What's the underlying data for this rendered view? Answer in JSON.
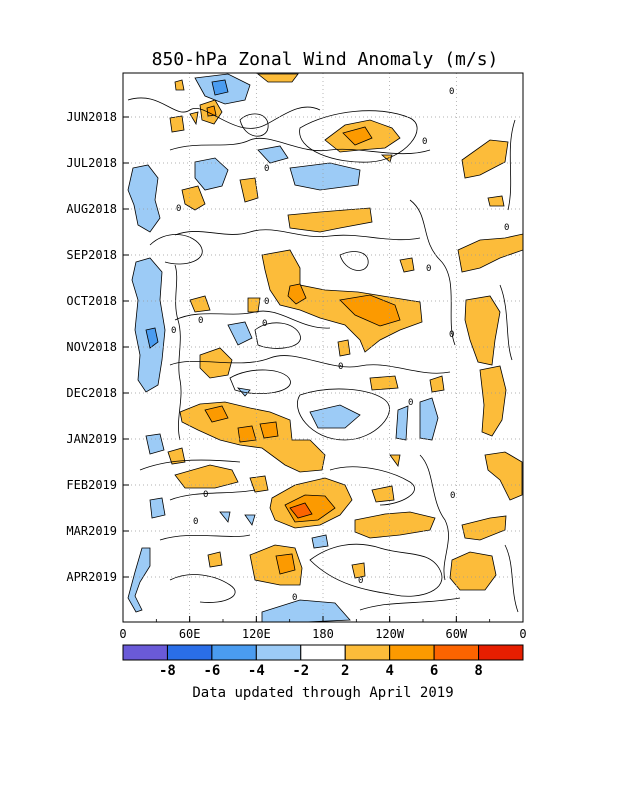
{
  "chart_data": {
    "type": "heatmap",
    "title": "850-hPa Zonal Wind Anomaly (m/s)",
    "footer": "Data updated through April 2019",
    "x_axis": {
      "ticks": [
        "0",
        "60E",
        "120E",
        "180",
        "120W",
        "60W",
        "0"
      ],
      "range_deg_east": [
        0,
        360
      ]
    },
    "y_axis": {
      "ticks": [
        "JUN2018",
        "JUL2018",
        "AUG2018",
        "SEP2018",
        "OCT2018",
        "NOV2018",
        "DEC2018",
        "JAN2019",
        "FEB2019",
        "MAR2019",
        "APR2019"
      ],
      "direction": "time increases downward"
    },
    "grid": "dotted",
    "contour_zero_label": "0",
    "colorbar": {
      "labels": [
        "-8",
        "-6",
        "-4",
        "-2",
        "2",
        "4",
        "6",
        "8"
      ],
      "bins": [
        {
          "color": "#6a5ad8"
        },
        {
          "color": "#2a6ee8"
        },
        {
          "color": "#4a9cf0"
        },
        {
          "color": "#9ccbf6"
        },
        {
          "color": "#ffffff"
        },
        {
          "color": "#fcbc3a"
        },
        {
          "color": "#fc9a00"
        },
        {
          "color": "#fc6400"
        },
        {
          "color": "#e61e00"
        }
      ]
    },
    "anomaly_patches": [
      {
        "lon": 85,
        "date": "2018-05-10",
        "value": -3
      },
      {
        "lon": 80,
        "date": "2018-06-08",
        "value": 3
      },
      {
        "lon": 48,
        "date": "2018-06-12",
        "value": 2
      },
      {
        "lon": 222,
        "date": "2018-06-25",
        "value": 4
      },
      {
        "lon": 330,
        "date": "2018-07-10",
        "value": 3
      },
      {
        "lon": 180,
        "date": "2018-07-30",
        "value": -3
      },
      {
        "lon": 90,
        "date": "2018-07-25",
        "value": -2
      },
      {
        "lon": 25,
        "date": "2018-08-01",
        "value": -2
      },
      {
        "lon": 63,
        "date": "2018-08-05",
        "value": 2
      },
      {
        "lon": 212,
        "date": "2018-08-25",
        "value": 3
      },
      {
        "lon": 330,
        "date": "2018-09-12",
        "value": 3
      },
      {
        "lon": 20,
        "date": "2018-10-15",
        "value": -3
      },
      {
        "lon": 155,
        "date": "2018-10-02",
        "value": 4
      },
      {
        "lon": 225,
        "date": "2018-10-10",
        "value": 5
      },
      {
        "lon": 318,
        "date": "2018-10-30",
        "value": 3
      },
      {
        "lon": 80,
        "date": "2018-11-20",
        "value": 3
      },
      {
        "lon": 190,
        "date": "2018-12-05",
        "value": -2
      },
      {
        "lon": 105,
        "date": "2018-12-28",
        "value": 4
      },
      {
        "lon": 150,
        "date": "2019-01-08",
        "value": 4
      },
      {
        "lon": 178,
        "date": "2019-01-25",
        "value": 3
      },
      {
        "lon": 220,
        "date": "2019-01-15",
        "value": -2
      },
      {
        "lon": 265,
        "date": "2019-01-20",
        "value": -2
      },
      {
        "lon": 95,
        "date": "2019-02-06",
        "value": 3
      },
      {
        "lon": 168,
        "date": "2019-02-26",
        "value": 6
      },
      {
        "lon": 235,
        "date": "2019-03-12",
        "value": 3
      },
      {
        "lon": 345,
        "date": "2019-02-28",
        "value": 3
      },
      {
        "lon": 140,
        "date": "2019-04-15",
        "value": 4
      },
      {
        "lon": 285,
        "date": "2019-04-20",
        "value": 3
      },
      {
        "lon": 30,
        "date": "2019-04-10",
        "value": -2
      },
      {
        "lon": 185,
        "date": "2019-05-01",
        "value": -2
      }
    ]
  }
}
